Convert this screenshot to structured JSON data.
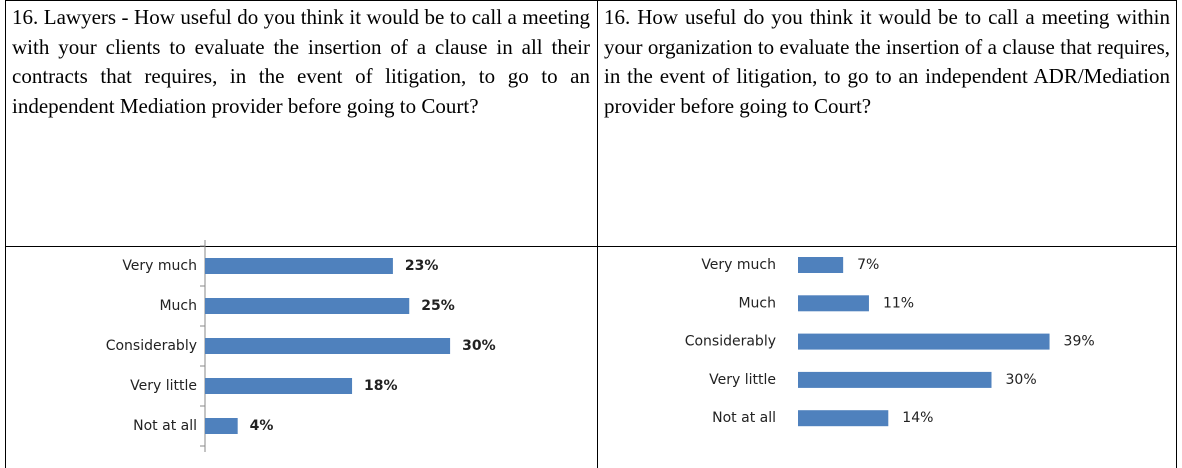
{
  "table": {
    "rows": [
      [
        "16.  Lawyers - How useful do you think it would be to call a meeting with your clients to evaluate the insertion of a clause in all their contracts that requires, in the event of litigation, to go to an independent Mediation provider before going to Court?",
        "16. How useful do you think it would be to call a meeting within your organization to evaluate the insertion of a clause that requires, in the event of litigation, to go to an independent ADR/Mediation provider before going to Court?"
      ]
    ]
  },
  "chart_data": [
    {
      "type": "bar",
      "orientation": "horizontal",
      "categories": [
        "Very much",
        "Much",
        "Considerably",
        "Very little",
        "Not at all"
      ],
      "values": [
        23,
        25,
        30,
        18,
        4
      ],
      "value_labels": [
        "23%",
        "25%",
        "30%",
        "18%",
        "4%"
      ],
      "color": "#4f81bd"
    },
    {
      "type": "bar",
      "orientation": "horizontal",
      "categories": [
        "Very much",
        "Much",
        "Considerably",
        "Very little",
        "Not at all"
      ],
      "values": [
        7,
        11,
        39,
        30,
        14
      ],
      "value_labels": [
        "7%",
        "11%",
        "39%",
        "30%",
        "14%"
      ],
      "color": "#4f81bd"
    }
  ]
}
